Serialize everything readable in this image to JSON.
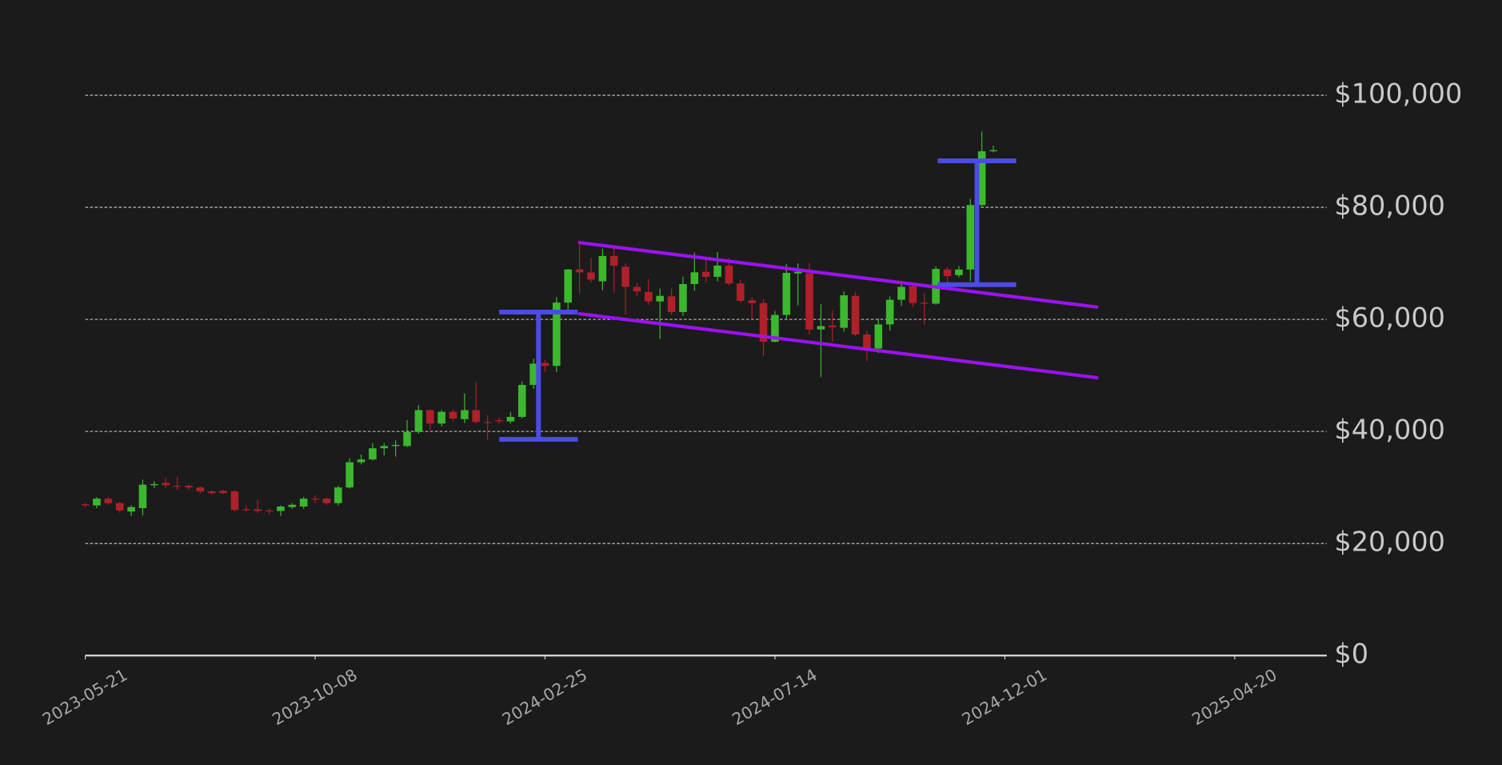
{
  "chart_data": {
    "type": "candlestick",
    "x": [
      "2023-05-21",
      "2023-05-28",
      "2023-06-04",
      "2023-06-11",
      "2023-06-18",
      "2023-06-25",
      "2023-07-02",
      "2023-07-09",
      "2023-07-16",
      "2023-07-23",
      "2023-07-30",
      "2023-08-06",
      "2023-08-13",
      "2023-08-20",
      "2023-08-27",
      "2023-09-03",
      "2023-09-10",
      "2023-09-17",
      "2023-09-24",
      "2023-10-01",
      "2023-10-08",
      "2023-10-15",
      "2023-10-22",
      "2023-10-29",
      "2023-11-05",
      "2023-11-12",
      "2023-11-19",
      "2023-11-26",
      "2023-12-03",
      "2023-12-10",
      "2023-12-17",
      "2023-12-24",
      "2023-12-31",
      "2024-01-07",
      "2024-01-14",
      "2024-01-21",
      "2024-01-28",
      "2024-02-04",
      "2024-02-11",
      "2024-02-18",
      "2024-02-25",
      "2024-03-03",
      "2024-03-10",
      "2024-03-17",
      "2024-03-24",
      "2024-03-31",
      "2024-04-07",
      "2024-04-14",
      "2024-04-21",
      "2024-04-28",
      "2024-05-05",
      "2024-05-12",
      "2024-05-19",
      "2024-05-26",
      "2024-06-02",
      "2024-06-09",
      "2024-06-16",
      "2024-06-23",
      "2024-06-30",
      "2024-07-07",
      "2024-07-14",
      "2024-07-21",
      "2024-07-28",
      "2024-08-04",
      "2024-08-11",
      "2024-08-18",
      "2024-08-25",
      "2024-09-01",
      "2024-09-08",
      "2024-09-15",
      "2024-09-22",
      "2024-09-29",
      "2024-10-06",
      "2024-10-13",
      "2024-10-20",
      "2024-10-27",
      "2024-11-03",
      "2024-11-10",
      "2024-11-17",
      "2024-11-24"
    ],
    "open": [
      27000,
      26800,
      28000,
      27200,
      25700,
      26300,
      30400,
      30800,
      30300,
      30300,
      30000,
      29300,
      29400,
      29300,
      26100,
      26100,
      25900,
      25800,
      26500,
      26600,
      28000,
      28000,
      27200,
      30000,
      34500,
      35000,
      37000,
      37400,
      37400,
      39900,
      43800,
      41400,
      43500,
      42200,
      43800,
      41700,
      42000,
      41800,
      42600,
      48300,
      52200,
      51700,
      63000,
      68900,
      68400,
      66800,
      71300,
      69400,
      65800,
      64900,
      63200,
      64100,
      61300,
      66300,
      68500,
      67600,
      69600,
      66400,
      63400,
      62900,
      56000,
      60800,
      68200,
      68200,
      58200,
      58900,
      58500,
      64200,
      57300,
      54800,
      59100,
      63500,
      65900,
      63000,
      62800,
      68900,
      67900,
      68900,
      80400,
      90000
    ],
    "high": [
      27300,
      28300,
      28300,
      27500,
      26800,
      31400,
      31100,
      31700,
      31900,
      30500,
      30200,
      29500,
      29600,
      29500,
      26800,
      27800,
      26200,
      26800,
      27200,
      28300,
      28600,
      28200,
      30300,
      35200,
      35900,
      37900,
      37900,
      38400,
      42000,
      44700,
      44000,
      43800,
      43900,
      46800,
      48800,
      42900,
      42400,
      43500,
      48900,
      53000,
      52800,
      64000,
      69000,
      73700,
      71000,
      72600,
      72700,
      70000,
      66500,
      67200,
      65500,
      65500,
      67600,
      71900,
      70600,
      72000,
      71000,
      67100,
      64000,
      63600,
      61500,
      69900,
      70000,
      70100,
      62700,
      61600,
      65000,
      64900,
      58000,
      60200,
      64100,
      66500,
      66000,
      64700,
      69500,
      69300,
      69500,
      81500,
      93500,
      91000
    ],
    "low": [
      26500,
      26300,
      26900,
      25500,
      24900,
      25000,
      29900,
      29900,
      29600,
      29600,
      28900,
      28700,
      28800,
      25700,
      25700,
      25400,
      25200,
      24900,
      26200,
      26200,
      27300,
      26900,
      26800,
      29800,
      34100,
      34800,
      35700,
      35500,
      37200,
      39600,
      40300,
      40900,
      41800,
      41500,
      41400,
      38500,
      41400,
      41400,
      42300,
      47600,
      50600,
      50600,
      61000,
      64600,
      66600,
      65200,
      64700,
      60900,
      64200,
      62600,
      56500,
      60800,
      60600,
      65100,
      66600,
      66800,
      66100,
      63000,
      60000,
      53500,
      55900,
      59900,
      62500,
      57300,
      49700,
      56000,
      57800,
      57000,
      52600,
      54000,
      58000,
      62400,
      62200,
      59000,
      62600,
      66600,
      67500,
      66800,
      80200,
      89800
    ],
    "close": [
      26800,
      28000,
      27200,
      25900,
      26500,
      30500,
      30600,
      30400,
      30200,
      30000,
      29300,
      29000,
      29000,
      26000,
      26000,
      25800,
      25800,
      26600,
      26900,
      28000,
      27900,
      27200,
      30000,
      34500,
      35000,
      37000,
      37400,
      37600,
      39900,
      43800,
      41400,
      43500,
      42300,
      43800,
      41700,
      41600,
      41800,
      42600,
      48300,
      52100,
      51700,
      63000,
      68900,
      68400,
      67100,
      71300,
      69600,
      65800,
      65000,
      63200,
      64200,
      61300,
      66300,
      68400,
      67600,
      69600,
      66400,
      63300,
      62900,
      56000,
      60800,
      68300,
      68500,
      58200,
      58800,
      58600,
      64300,
      57300,
      54800,
      59100,
      63500,
      65800,
      62900,
      62800,
      69000,
      67700,
      68900,
      80400,
      90000,
      90200
    ],
    "up_color": "#3cb82e",
    "down_color": "#b0202a",
    "xlim": [
      "2023-05-21",
      "2025-06-15"
    ],
    "xticks": [
      "2023-05-21",
      "2023-10-08",
      "2024-02-25",
      "2024-07-14",
      "2024-12-01",
      "2025-04-20"
    ],
    "ylim": [
      0,
      117000
    ],
    "yticks": [
      {
        "value": 0,
        "label": "$0"
      },
      {
        "value": 20000,
        "label": "$20,000"
      },
      {
        "value": 40000,
        "label": "$40,000"
      },
      {
        "value": 60000,
        "label": "$60,000"
      },
      {
        "value": 80000,
        "label": "$80,000"
      },
      {
        "value": 100000,
        "label": "$100,000"
      }
    ],
    "grid": true,
    "channels": [
      {
        "color": "#9b12ef",
        "x": [
          "2024-03-17",
          "2025-01-26"
        ],
        "y": [
          73700,
          62200
        ]
      },
      {
        "color": "#9b12ef",
        "x": [
          "2024-03-17",
          "2025-01-26"
        ],
        "y": [
          61000,
          49600
        ]
      }
    ],
    "measures": [
      {
        "color": "#4b4be6",
        "x": "2024-02-21",
        "low": 38600,
        "high": 61300
      },
      {
        "color": "#4b4be6",
        "x": "2024-11-14",
        "low": 66200,
        "high": 88300
      }
    ]
  }
}
